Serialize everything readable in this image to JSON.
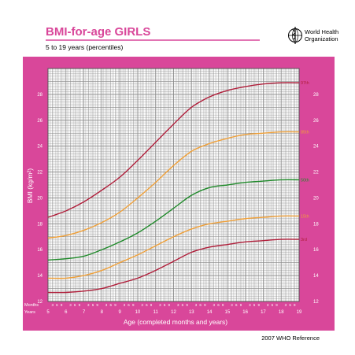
{
  "header": {
    "title": "BMI-for-age  GIRLS",
    "subtitle": "5 to 19 years (percentiles)",
    "org_line1": "World Health",
    "org_line2": "Organization",
    "logo_icon": "who-emblem-icon"
  },
  "footer": {
    "reference": "2007 WHO Reference"
  },
  "colors": {
    "frame": "#d9479a",
    "grid": "#8a8a8a",
    "p3": "#b01e3a",
    "p15": "#f0a038",
    "p50": "#1f8a2a",
    "p85": "#f0a038",
    "p97": "#b01e3a"
  },
  "chart_data": {
    "type": "line",
    "xlabel": "Age (completed months and years)",
    "ylabel": "BMI (kg/m²)",
    "xlim": [
      5,
      19
    ],
    "ylim": [
      12,
      30
    ],
    "x_ticks": [
      5,
      6,
      7,
      8,
      9,
      10,
      11,
      12,
      13,
      14,
      15,
      16,
      17,
      18,
      19
    ],
    "y_ticks": [
      12,
      14,
      16,
      18,
      20,
      22,
      24,
      26,
      28
    ],
    "month_ticks": [
      "3",
      "6",
      "9"
    ],
    "row_labels": [
      "Months",
      "Years"
    ],
    "grid": true,
    "x": [
      5,
      6,
      7,
      8,
      9,
      10,
      11,
      12,
      13,
      14,
      15,
      16,
      17,
      18,
      19
    ],
    "series": [
      {
        "name": "3rd",
        "color_key": "p3",
        "values": [
          12.7,
          12.7,
          12.8,
          13.0,
          13.4,
          13.8,
          14.4,
          15.1,
          15.8,
          16.2,
          16.4,
          16.6,
          16.7,
          16.8,
          16.8
        ]
      },
      {
        "name": "15th",
        "color_key": "p15",
        "values": [
          13.8,
          13.8,
          14.0,
          14.4,
          15.0,
          15.6,
          16.3,
          17.0,
          17.6,
          18.0,
          18.2,
          18.4,
          18.5,
          18.6,
          18.6
        ]
      },
      {
        "name": "50th",
        "color_key": "p50",
        "values": [
          15.2,
          15.3,
          15.5,
          16.0,
          16.6,
          17.3,
          18.2,
          19.2,
          20.2,
          20.8,
          21.0,
          21.2,
          21.3,
          21.4,
          21.4
        ]
      },
      {
        "name": "85th",
        "color_key": "p85",
        "values": [
          16.9,
          17.1,
          17.5,
          18.1,
          18.9,
          20.0,
          21.2,
          22.5,
          23.6,
          24.2,
          24.6,
          24.9,
          25.0,
          25.1,
          25.1
        ]
      },
      {
        "name": "97th",
        "color_key": "p97",
        "values": [
          18.5,
          19.0,
          19.7,
          20.6,
          21.6,
          22.9,
          24.3,
          25.7,
          27.0,
          27.8,
          28.3,
          28.6,
          28.8,
          28.9,
          28.9
        ]
      }
    ]
  }
}
